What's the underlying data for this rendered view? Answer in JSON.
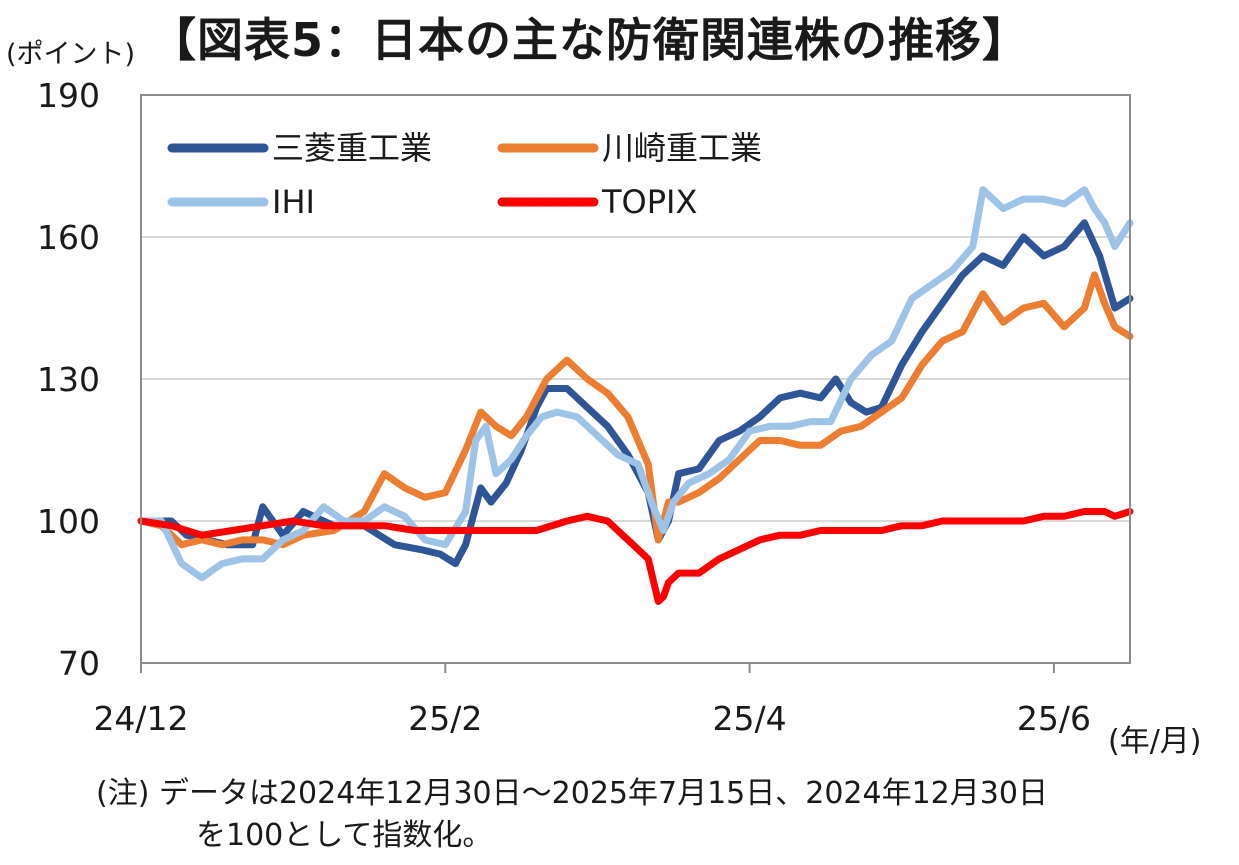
{
  "title": "【図表5：日本の主な防衛関連株の推移】",
  "y_unit": "(ポイント)",
  "x_unit": "(年/月)",
  "note_line1": "(注) データは2024年12月30日～2025年7月15日、2024年12月30日",
  "note_line2": "を100として指数化。",
  "chart_data": {
    "type": "line",
    "ylim": [
      70,
      190
    ],
    "yticks": [
      70,
      100,
      130,
      160,
      190
    ],
    "xlim": [
      0,
      195
    ],
    "xticks": [
      {
        "label": "24/12",
        "x": 0
      },
      {
        "label": "25/2",
        "x": 60
      },
      {
        "label": "25/4",
        "x": 120
      },
      {
        "label": "25/6",
        "x": 180
      }
    ],
    "grid": "horizontal",
    "legend": "top-left",
    "series": [
      {
        "name": "三菱重工業",
        "color": "#2E5597",
        "values": [
          [
            0,
            100
          ],
          [
            6,
            100
          ],
          [
            9,
            97
          ],
          [
            13,
            96
          ],
          [
            17,
            95
          ],
          [
            22,
            95
          ],
          [
            24,
            103
          ],
          [
            28,
            97
          ],
          [
            32,
            102
          ],
          [
            38,
            99
          ],
          [
            44,
            99
          ],
          [
            50,
            95
          ],
          [
            55,
            94
          ],
          [
            59,
            93
          ],
          [
            62,
            91
          ],
          [
            64,
            95
          ],
          [
            66,
            103
          ],
          [
            67,
            107
          ],
          [
            69,
            104
          ],
          [
            72,
            108
          ],
          [
            75,
            115
          ],
          [
            78,
            124
          ],
          [
            80,
            128
          ],
          [
            84,
            128
          ],
          [
            88,
            124
          ],
          [
            92,
            120
          ],
          [
            96,
            114
          ],
          [
            100,
            106
          ],
          [
            102,
            96
          ],
          [
            104,
            100
          ],
          [
            106,
            110
          ],
          [
            110,
            111
          ],
          [
            114,
            117
          ],
          [
            118,
            119
          ],
          [
            122,
            122
          ],
          [
            126,
            126
          ],
          [
            130,
            127
          ],
          [
            134,
            126
          ],
          [
            137,
            130
          ],
          [
            140,
            125
          ],
          [
            143,
            123
          ],
          [
            146,
            124
          ],
          [
            150,
            133
          ],
          [
            154,
            140
          ],
          [
            158,
            146
          ],
          [
            162,
            152
          ],
          [
            166,
            156
          ],
          [
            170,
            154
          ],
          [
            174,
            160
          ],
          [
            178,
            156
          ],
          [
            182,
            158
          ],
          [
            186,
            163
          ],
          [
            189,
            156
          ],
          [
            192,
            145
          ],
          [
            195,
            147
          ]
        ]
      },
      {
        "name": "川崎重工業",
        "color": "#ED7D31",
        "values": [
          [
            0,
            100
          ],
          [
            4,
            99
          ],
          [
            8,
            95
          ],
          [
            12,
            96
          ],
          [
            16,
            95
          ],
          [
            20,
            96
          ],
          [
            24,
            96
          ],
          [
            28,
            95
          ],
          [
            32,
            97
          ],
          [
            38,
            98
          ],
          [
            44,
            102
          ],
          [
            48,
            110
          ],
          [
            52,
            107
          ],
          [
            56,
            105
          ],
          [
            60,
            106
          ],
          [
            64,
            115
          ],
          [
            67,
            123
          ],
          [
            70,
            120
          ],
          [
            73,
            118
          ],
          [
            76,
            122
          ],
          [
            80,
            130
          ],
          [
            84,
            134
          ],
          [
            88,
            130
          ],
          [
            92,
            127
          ],
          [
            96,
            122
          ],
          [
            100,
            112
          ],
          [
            102,
            96
          ],
          [
            104,
            104
          ],
          [
            106,
            104
          ],
          [
            110,
            106
          ],
          [
            114,
            109
          ],
          [
            118,
            113
          ],
          [
            122,
            117
          ],
          [
            126,
            117
          ],
          [
            130,
            116
          ],
          [
            134,
            116
          ],
          [
            138,
            119
          ],
          [
            142,
            120
          ],
          [
            146,
            123
          ],
          [
            150,
            126
          ],
          [
            154,
            133
          ],
          [
            158,
            138
          ],
          [
            162,
            140
          ],
          [
            166,
            148
          ],
          [
            170,
            142
          ],
          [
            174,
            145
          ],
          [
            178,
            146
          ],
          [
            182,
            141
          ],
          [
            186,
            145
          ],
          [
            188,
            152
          ],
          [
            190,
            146
          ],
          [
            192,
            141
          ],
          [
            195,
            139
          ]
        ]
      },
      {
        "name": "IHI",
        "color": "#9DC3E6",
        "values": [
          [
            0,
            100
          ],
          [
            4,
            100
          ],
          [
            8,
            91
          ],
          [
            12,
            88
          ],
          [
            16,
            91
          ],
          [
            20,
            92
          ],
          [
            24,
            92
          ],
          [
            28,
            96
          ],
          [
            32,
            98
          ],
          [
            36,
            103
          ],
          [
            40,
            100
          ],
          [
            44,
            100
          ],
          [
            48,
            103
          ],
          [
            52,
            101
          ],
          [
            56,
            96
          ],
          [
            60,
            95
          ],
          [
            64,
            102
          ],
          [
            66,
            117
          ],
          [
            68,
            120
          ],
          [
            70,
            110
          ],
          [
            73,
            113
          ],
          [
            76,
            118
          ],
          [
            79,
            122
          ],
          [
            82,
            123
          ],
          [
            86,
            122
          ],
          [
            90,
            118
          ],
          [
            94,
            114
          ],
          [
            98,
            112
          ],
          [
            101,
            103
          ],
          [
            103,
            98
          ],
          [
            105,
            104
          ],
          [
            108,
            108
          ],
          [
            112,
            110
          ],
          [
            116,
            113
          ],
          [
            120,
            119
          ],
          [
            124,
            120
          ],
          [
            128,
            120
          ],
          [
            132,
            121
          ],
          [
            136,
            121
          ],
          [
            140,
            130
          ],
          [
            144,
            135
          ],
          [
            148,
            138
          ],
          [
            152,
            147
          ],
          [
            156,
            150
          ],
          [
            160,
            153
          ],
          [
            164,
            158
          ],
          [
            166,
            170
          ],
          [
            170,
            166
          ],
          [
            174,
            168
          ],
          [
            178,
            168
          ],
          [
            182,
            167
          ],
          [
            186,
            170
          ],
          [
            188,
            166
          ],
          [
            190,
            163
          ],
          [
            192,
            158
          ],
          [
            195,
            163
          ]
        ]
      },
      {
        "name": "TOPIX",
        "color": "#FF0000",
        "values": [
          [
            0,
            100
          ],
          [
            6,
            99
          ],
          [
            12,
            97
          ],
          [
            18,
            98
          ],
          [
            24,
            99
          ],
          [
            30,
            100
          ],
          [
            36,
            99
          ],
          [
            42,
            99
          ],
          [
            48,
            99
          ],
          [
            54,
            98
          ],
          [
            60,
            98
          ],
          [
            66,
            98
          ],
          [
            72,
            98
          ],
          [
            78,
            98
          ],
          [
            84,
            100
          ],
          [
            88,
            101
          ],
          [
            92,
            100
          ],
          [
            96,
            96
          ],
          [
            100,
            92
          ],
          [
            102,
            83
          ],
          [
            103,
            84
          ],
          [
            104,
            87
          ],
          [
            106,
            89
          ],
          [
            110,
            89
          ],
          [
            114,
            92
          ],
          [
            118,
            94
          ],
          [
            122,
            96
          ],
          [
            126,
            97
          ],
          [
            130,
            97
          ],
          [
            134,
            98
          ],
          [
            138,
            98
          ],
          [
            142,
            98
          ],
          [
            146,
            98
          ],
          [
            150,
            99
          ],
          [
            154,
            99
          ],
          [
            158,
            100
          ],
          [
            162,
            100
          ],
          [
            166,
            100
          ],
          [
            170,
            100
          ],
          [
            174,
            100
          ],
          [
            178,
            101
          ],
          [
            182,
            101
          ],
          [
            186,
            102
          ],
          [
            190,
            102
          ],
          [
            192,
            101
          ],
          [
            195,
            102
          ]
        ]
      }
    ]
  }
}
